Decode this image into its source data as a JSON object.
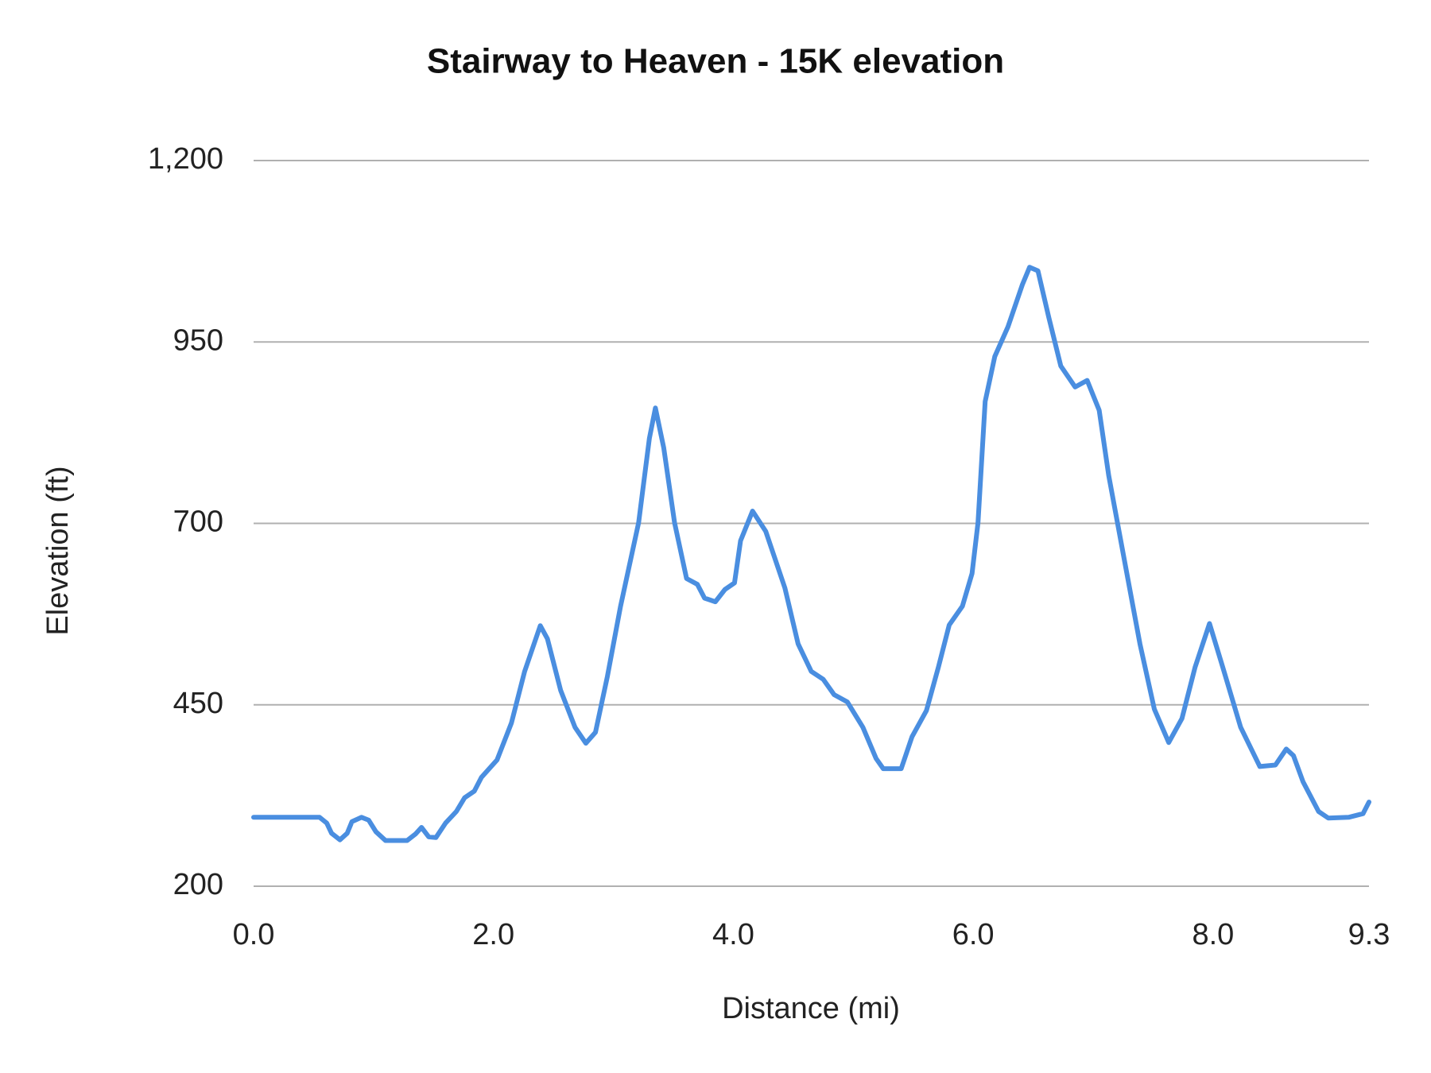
{
  "chart_data": {
    "type": "line",
    "title": "Stairway to Heaven - 15K elevation",
    "x_label": "Distance (mi)",
    "y_label": "Elevation (ft)",
    "xlim": [
      0,
      9.3
    ],
    "ylim": [
      200,
      1200
    ],
    "xticks": [
      {
        "value": 0,
        "label": "0.0"
      },
      {
        "value": 2,
        "label": "2.0"
      },
      {
        "value": 4,
        "label": "4.0"
      },
      {
        "value": 6,
        "label": "6.0"
      },
      {
        "value": 8,
        "label": "8.0"
      },
      9.3
    ],
    "yticks": [
      200,
      450,
      700,
      950,
      {
        "value": 1200,
        "label": "1,200"
      }
    ],
    "grid": true,
    "series": [
      {
        "color": "#4a8ee0",
        "x": [
          0,
          0.55,
          0.61,
          0.65,
          0.72,
          0.78,
          0.82,
          0.9,
          0.96,
          1.02,
          1.1,
          1.28,
          1.35,
          1.4,
          1.46,
          1.52,
          1.6,
          1.69,
          1.76,
          1.84,
          1.9,
          2.03,
          2.15,
          2.26,
          2.39,
          2.45,
          2.56,
          2.68,
          2.77,
          2.85,
          2.95,
          3.06,
          3.21,
          3.3,
          3.35,
          3.42,
          3.51,
          3.61,
          3.7,
          3.76,
          3.85,
          3.93,
          4.01,
          4.06,
          4.16,
          4.27,
          4.43,
          4.54,
          4.65,
          4.75,
          4.84,
          4.95,
          5.08,
          5.19,
          5.25,
          5.4,
          5.49,
          5.61,
          5.71,
          5.8,
          5.91,
          5.99,
          6.04,
          6.1,
          6.18,
          6.29,
          6.41,
          6.47,
          6.54,
          6.63,
          6.73,
          6.85,
          6.95,
          7.05,
          7.13,
          7.26,
          7.39,
          7.51,
          7.63,
          7.74,
          7.85,
          7.97,
          8.08,
          8.23,
          8.39,
          8.52,
          8.61,
          8.67,
          8.75,
          8.88,
          8.96,
          9.13,
          9.25,
          9.3
        ],
        "values": [
          295,
          295,
          287,
          273,
          264,
          273,
          289,
          295,
          291,
          275,
          263,
          263,
          272,
          281,
          268,
          267,
          287,
          303,
          322,
          331,
          350,
          374,
          425,
          496,
          559,
          541,
          470,
          419,
          397,
          412,
          489,
          586,
          701,
          817,
          859,
          804,
          701,
          624,
          616,
          597,
          592,
          609,
          618,
          676,
          717,
          689,
          611,
          534,
          496,
          485,
          464,
          454,
          419,
          376,
          362,
          362,
          406,
          442,
          502,
          560,
          586,
          631,
          701,
          868,
          930,
          971,
          1029,
          1053,
          1048,
          984,
          917,
          888,
          897,
          856,
          766,
          650,
          534,
          444,
          398,
          431,
          502,
          562,
          502,
          419,
          365,
          367,
          389,
          380,
          344,
          303,
          294,
          295,
          300,
          316
        ]
      }
    ]
  }
}
